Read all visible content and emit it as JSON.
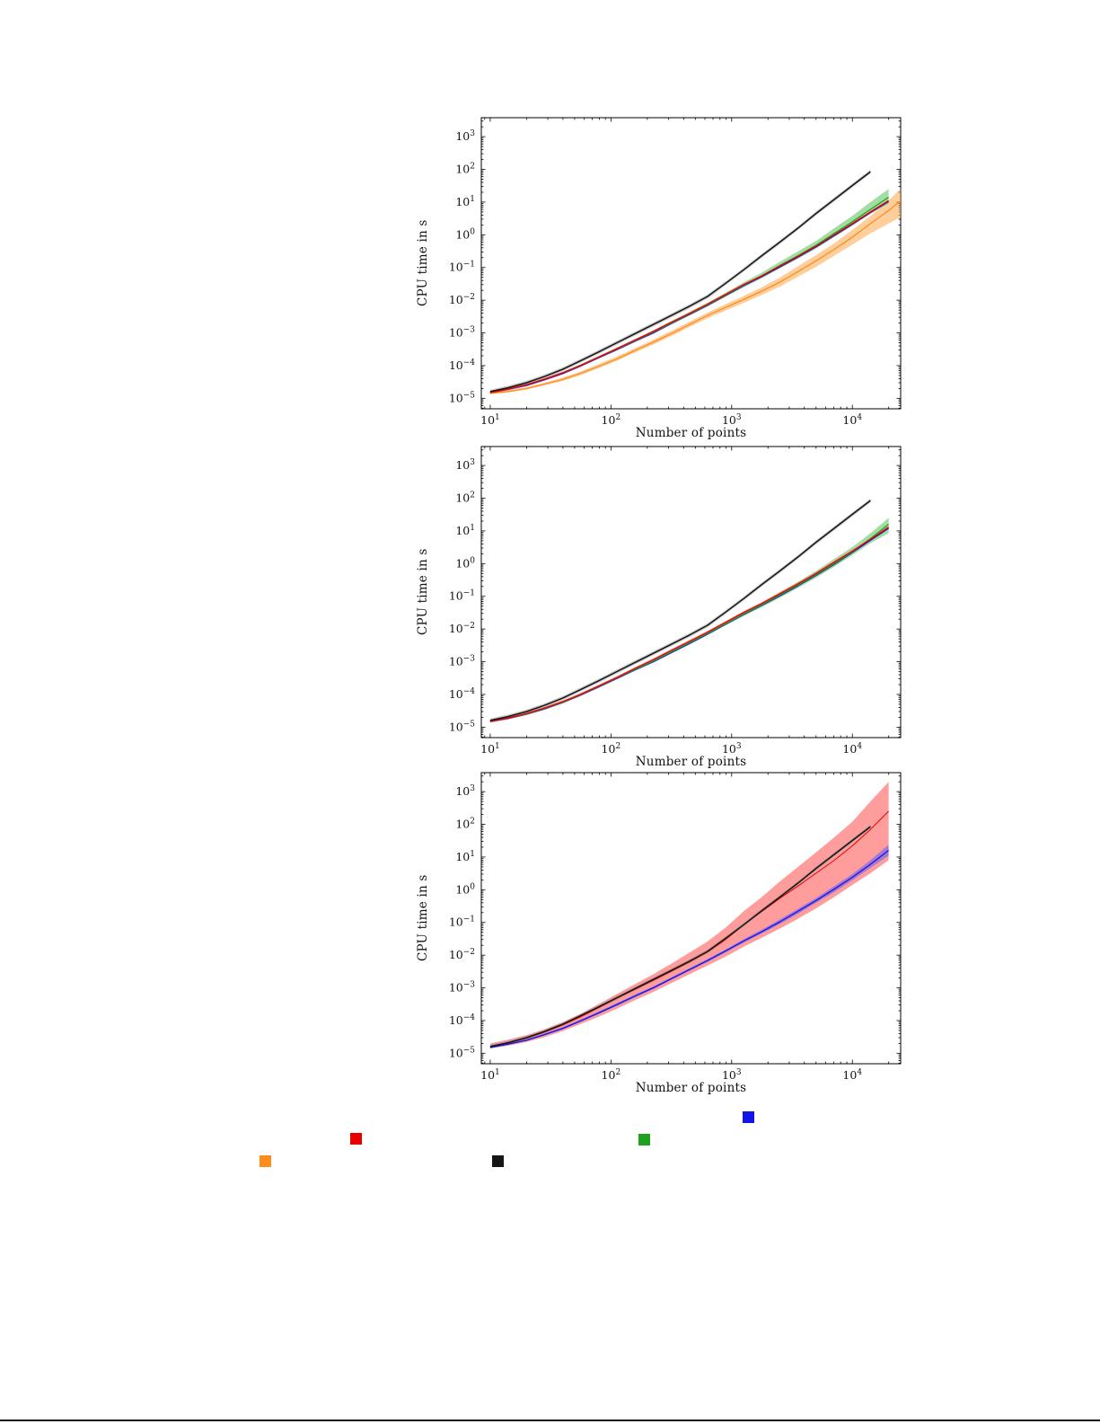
{
  "figure": {
    "xlabel": "Number of points",
    "ylabel": "CPU time in s"
  },
  "colors": {
    "black": "#151515",
    "red": "#e60000",
    "green": "#1fa11f",
    "blue": "#1414e6",
    "orange": "#ff8c1a",
    "band_black": "#8a8a8a",
    "band_red": "#ff4d4d",
    "band_green": "#59c159",
    "band_blue": "#5a5aff",
    "band_orange": "#ffa64d"
  },
  "chart_data": [
    {
      "type": "line",
      "title": "",
      "xlabel": "Number of points",
      "ylabel": "CPU time in s",
      "x_scale": "log",
      "y_scale": "log",
      "x_log_range": [
        0.926,
        4.4
      ],
      "y_log_range": [
        -5.32,
        3.58
      ],
      "x_tick_exponents": [
        1,
        2,
        3,
        4
      ],
      "y_tick_exponents": [
        3,
        2,
        1,
        0,
        -1,
        -2,
        -3,
        -4,
        -5
      ],
      "x": [
        10,
        14,
        20,
        28,
        40,
        56,
        79,
        112,
        158,
        224,
        316,
        447,
        631,
        891,
        1259,
        1778,
        2512,
        3548,
        5012,
        7079,
        10000,
        14125,
        19953,
        25119
      ],
      "series": [
        {
          "name": "orange",
          "color": "orange",
          "values": [
            1.4e-05,
            1.6e-05,
            2e-05,
            2.7e-05,
            3.8e-05,
            5.8e-05,
            9.5e-05,
            0.00016,
            0.00029,
            0.00052,
            0.00095,
            0.0018,
            0.0034,
            0.006,
            0.0105,
            0.019,
            0.036,
            0.075,
            0.16,
            0.36,
            0.85,
            2.2,
            5.5,
            11
          ],
          "band": {
            "upper": [
              1.5e-05,
              1.75e-05,
              2.2e-05,
              3e-05,
              4.3e-05,
              6.6e-05,
              0.00011,
              0.00019,
              0.00034,
              0.00062,
              0.00115,
              0.0022,
              0.0042,
              0.0076,
              0.0135,
              0.025,
              0.05,
              0.11,
              0.24,
              0.55,
              1.4,
              3.8,
              11,
              26
            ],
            "lower": [
              1.35e-05,
              1.5e-05,
              1.85e-05,
              2.5e-05,
              3.4e-05,
              5.1e-05,
              8.3e-05,
              0.00014,
              0.00025,
              0.00044,
              0.0008,
              0.0015,
              0.0028,
              0.0048,
              0.0083,
              0.0145,
              0.026,
              0.052,
              0.105,
              0.23,
              0.5,
              1.1,
              2.2,
              3.5
            ]
          }
        },
        {
          "name": "blue",
          "color": "blue",
          "values": [
            1.5e-05,
            1.9e-05,
            2.5e-05,
            3.7e-05,
            5.8e-05,
            9.8e-05,
            0.000175,
            0.00031,
            0.00056,
            0.001,
            0.00195,
            0.0037,
            0.007,
            0.014,
            0.028,
            0.053,
            0.105,
            0.21,
            0.43,
            0.95,
            2.1,
            4.8,
            10.5,
            null
          ],
          "band_scale": 1.08
        },
        {
          "name": "green",
          "color": "green",
          "values": [
            1.5e-05,
            1.9e-05,
            2.6e-05,
            3.8e-05,
            6e-05,
            0.0001,
            0.00018,
            0.00032,
            0.00058,
            0.00105,
            0.002,
            0.0038,
            0.0072,
            0.0145,
            0.029,
            0.056,
            0.115,
            0.23,
            0.48,
            1.1,
            2.5,
            6.0,
            14,
            null
          ],
          "band": {
            "upper": [
              1.6e-05,
              2e-05,
              2.8e-05,
              4.1e-05,
              6.5e-05,
              0.00011,
              0.0002,
              0.00035,
              0.00064,
              0.0012,
              0.0023,
              0.0044,
              0.0085,
              0.017,
              0.035,
              0.07,
              0.15,
              0.31,
              0.65,
              1.6,
              3.8,
              10,
              25,
              null
            ],
            "lower": [
              1.45e-05,
              1.85e-05,
              2.5e-05,
              3.6e-05,
              5.6e-05,
              9.4e-05,
              0.00017,
              0.0003,
              0.00054,
              0.00097,
              0.0018,
              0.0034,
              0.0064,
              0.0128,
              0.025,
              0.047,
              0.095,
              0.185,
              0.38,
              0.85,
              1.9,
              4.4,
              9,
              null
            ]
          }
        },
        {
          "name": "red",
          "color": "red",
          "values": [
            1.5e-05,
            1.9e-05,
            2.6e-05,
            3.8e-05,
            6e-05,
            0.0001,
            0.00018,
            0.00033,
            0.0006,
            0.0011,
            0.0021,
            0.0039,
            0.0075,
            0.015,
            0.03,
            0.055,
            0.11,
            0.22,
            0.45,
            1.0,
            2.2,
            5.0,
            11,
            null
          ],
          "band_scale": 1.08
        },
        {
          "name": "black",
          "color": "black",
          "values": [
            1.6e-05,
            2.1e-05,
            3e-05,
            4.6e-05,
            7.8e-05,
            0.00014,
            0.00026,
            0.0005,
            0.00095,
            0.0018,
            0.0034,
            0.0065,
            0.013,
            0.033,
            0.085,
            0.23,
            0.6,
            1.6,
            4.5,
            12,
            32,
            85,
            null,
            null
          ],
          "band_scale": 1.15
        }
      ]
    },
    {
      "type": "line",
      "title": "",
      "xlabel": "Number of points",
      "ylabel": "CPU time in s",
      "x_scale": "log",
      "y_scale": "log",
      "x_log_range": [
        0.926,
        4.4
      ],
      "y_log_range": [
        -5.32,
        3.58
      ],
      "x_tick_exponents": [
        1,
        2,
        3,
        4
      ],
      "y_tick_exponents": [
        3,
        2,
        1,
        0,
        -1,
        -2,
        -3,
        -4,
        -5
      ],
      "x": [
        10,
        14,
        20,
        28,
        40,
        56,
        79,
        112,
        158,
        224,
        316,
        447,
        631,
        891,
        1259,
        1778,
        2512,
        3548,
        5012,
        7079,
        10000,
        14125,
        19953
      ],
      "series": [
        {
          "name": "blue",
          "color": "blue",
          "values": [
            1.5e-05,
            1.85e-05,
            2.5e-05,
            3.6e-05,
            5.7e-05,
            9.6e-05,
            0.00017,
            0.00031,
            0.00056,
            0.001,
            0.0019,
            0.0036,
            0.007,
            0.014,
            0.028,
            0.053,
            0.105,
            0.21,
            0.44,
            0.95,
            2.2,
            5.2,
            12
          ],
          "band_scale": 1.07
        },
        {
          "name": "green",
          "color": "green",
          "values": [
            1.5e-05,
            1.9e-05,
            2.5e-05,
            3.7e-05,
            5.8e-05,
            9.8e-05,
            0.000175,
            0.00032,
            0.00058,
            0.00105,
            0.002,
            0.0038,
            0.0073,
            0.0145,
            0.029,
            0.055,
            0.11,
            0.22,
            0.46,
            1.0,
            2.3,
            5.8,
            16
          ],
          "band": {
            "upper": [
              1.6e-05,
              2e-05,
              2.7e-05,
              4e-05,
              6.3e-05,
              0.000105,
              0.00019,
              0.00034,
              0.00062,
              0.00115,
              0.0022,
              0.0042,
              0.0082,
              0.0165,
              0.033,
              0.065,
              0.135,
              0.28,
              0.6,
              1.4,
              3.2,
              8.5,
              25
            ],
            "lower": [
              1.45e-05,
              1.8e-05,
              2.4e-05,
              3.5e-05,
              5.4e-05,
              9.2e-05,
              0.000165,
              0.0003,
              0.00054,
              0.00096,
              0.0018,
              0.0034,
              0.0065,
              0.013,
              0.025,
              0.047,
              0.09,
              0.18,
              0.37,
              0.8,
              1.8,
              4.2,
              8.5
            ]
          }
        },
        {
          "name": "red",
          "color": "red",
          "values": [
            1.5e-05,
            1.9e-05,
            2.6e-05,
            3.8e-05,
            6e-05,
            0.0001,
            0.00018,
            0.00033,
            0.00062,
            0.00115,
            0.0022,
            0.0042,
            0.008,
            0.016,
            0.032,
            0.06,
            0.12,
            0.24,
            0.5,
            1.1,
            2.4,
            5.5,
            13
          ],
          "band_scale": 1.1
        },
        {
          "name": "black",
          "color": "black",
          "values": [
            1.6e-05,
            2.1e-05,
            3e-05,
            4.6e-05,
            7.8e-05,
            0.00014,
            0.00026,
            0.0005,
            0.00095,
            0.0018,
            0.0034,
            0.0065,
            0.013,
            0.033,
            0.085,
            0.23,
            0.6,
            1.6,
            4.5,
            12,
            32,
            85,
            null
          ],
          "band_scale": 1.15
        }
      ]
    },
    {
      "type": "line",
      "title": "",
      "xlabel": "Number of points",
      "ylabel": "CPU time in s",
      "x_scale": "log",
      "y_scale": "log",
      "x_log_range": [
        0.926,
        4.4
      ],
      "y_log_range": [
        -5.32,
        3.58
      ],
      "x_tick_exponents": [
        1,
        2,
        3,
        4
      ],
      "y_tick_exponents": [
        3,
        2,
        1,
        0,
        -1,
        -2,
        -3,
        -4,
        -5
      ],
      "x": [
        10,
        14,
        20,
        28,
        40,
        56,
        79,
        112,
        158,
        224,
        316,
        447,
        631,
        891,
        1259,
        1778,
        2512,
        3548,
        5012,
        7079,
        10000,
        14125,
        19953
      ],
      "series": [
        {
          "name": "red",
          "color": "red",
          "line_width": 1.0,
          "values": [
            1.6e-05,
            2.05e-05,
            2.9e-05,
            4.4e-05,
            7.4e-05,
            0.00013,
            0.00025,
            0.00048,
            0.0009,
            0.0017,
            0.0032,
            0.0062,
            0.0125,
            0.03,
            0.085,
            0.22,
            0.55,
            1.3,
            3.2,
            8.0,
            22,
            70,
            250
          ],
          "band": {
            "upper": [
              2e-05,
              2.6e-05,
              3.6e-05,
              5.4e-05,
              9e-05,
              0.00016,
              0.00032,
              0.00065,
              0.0013,
              0.0026,
              0.0055,
              0.012,
              0.026,
              0.07,
              0.22,
              0.6,
              1.8,
              5.0,
              14,
              40,
              120,
              500,
              2000
            ],
            "lower": [
              1.4e-05,
              1.7e-05,
              2.2e-05,
              3.1e-05,
              4.8e-05,
              7.8e-05,
              0.00013,
              0.00023,
              0.00042,
              0.00075,
              0.0014,
              0.0026,
              0.0048,
              0.009,
              0.018,
              0.034,
              0.065,
              0.13,
              0.27,
              0.6,
              1.4,
              3.2,
              8.0
            ]
          }
        },
        {
          "name": "blue",
          "color": "blue",
          "values": [
            1.5e-05,
            1.9e-05,
            2.5e-05,
            3.7e-05,
            5.8e-05,
            9.8e-05,
            0.00017,
            0.00031,
            0.00056,
            0.001,
            0.0019,
            0.0036,
            0.0068,
            0.0135,
            0.027,
            0.052,
            0.105,
            0.22,
            0.47,
            1.05,
            2.4,
            6.0,
            16
          ],
          "band": {
            "upper": [
              1.6e-05,
              2e-05,
              2.7e-05,
              4e-05,
              6.3e-05,
              0.000107,
              0.00019,
              0.00034,
              0.00062,
              0.0011,
              0.0021,
              0.004,
              0.0076,
              0.015,
              0.031,
              0.06,
              0.125,
              0.26,
              0.56,
              1.3,
              3.0,
              8.0,
              24
            ],
            "lower": [
              1.45e-05,
              1.8e-05,
              2.4e-05,
              3.5e-05,
              5.4e-05,
              9e-05,
              0.00016,
              0.00028,
              0.00051,
              0.00092,
              0.00175,
              0.0033,
              0.0062,
              0.012,
              0.024,
              0.046,
              0.09,
              0.185,
              0.4,
              0.85,
              1.95,
              4.7,
              11
            ]
          }
        },
        {
          "name": "black",
          "color": "black",
          "values": [
            1.6e-05,
            2.1e-05,
            3e-05,
            4.6e-05,
            7.8e-05,
            0.00014,
            0.00026,
            0.0005,
            0.00095,
            0.0018,
            0.0034,
            0.0065,
            0.013,
            0.033,
            0.085,
            0.23,
            0.6,
            1.6,
            4.5,
            12,
            32,
            85,
            null
          ],
          "band_scale": 1.15
        }
      ]
    }
  ],
  "legend": {
    "markers": [
      {
        "color": "blue"
      },
      {
        "color": "red"
      },
      {
        "color": "green"
      },
      {
        "color": "orange"
      },
      {
        "color": "black"
      }
    ]
  }
}
